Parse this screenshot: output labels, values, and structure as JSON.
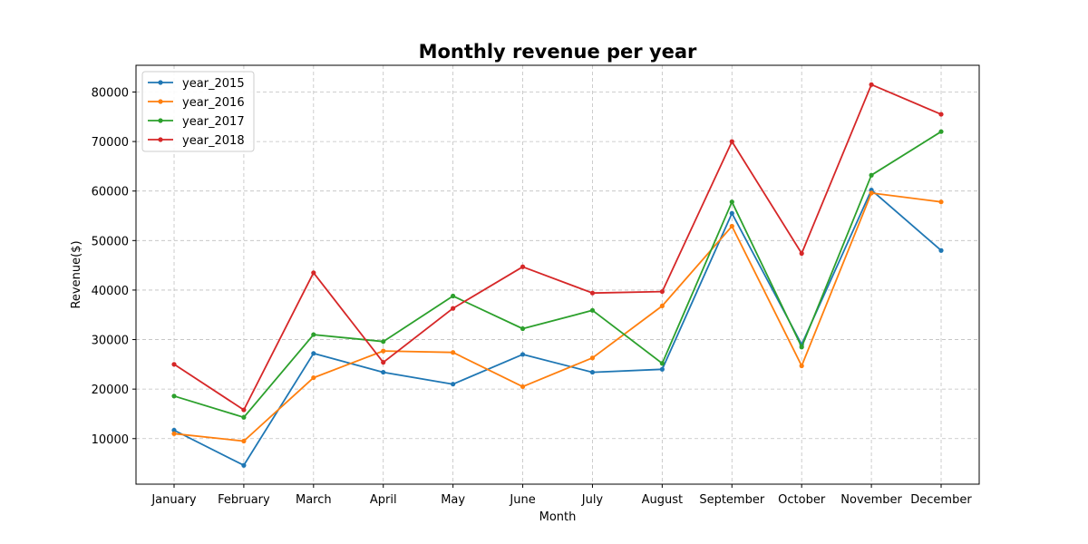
{
  "chart_data": {
    "type": "line",
    "title": "Monthly revenue per year",
    "xlabel": "Month",
    "ylabel": "Revenue($)",
    "categories": [
      "January",
      "February",
      "March",
      "April",
      "May",
      "June",
      "July",
      "August",
      "September",
      "October",
      "November",
      "December"
    ],
    "yticks": [
      10000,
      20000,
      30000,
      40000,
      50000,
      60000,
      70000,
      80000
    ],
    "ylim": [
      800,
      85400
    ],
    "grid": true,
    "legend_position": "top-left",
    "series": [
      {
        "name": "year_2015",
        "color": "#1f77b4",
        "values": [
          11700,
          4600,
          27200,
          23400,
          21000,
          27000,
          23400,
          24000,
          55500,
          29000,
          60200,
          48000
        ]
      },
      {
        "name": "year_2016",
        "color": "#ff7f0e",
        "values": [
          11000,
          9500,
          22300,
          27700,
          27400,
          20500,
          26300,
          36800,
          52900,
          24700,
          59600,
          57800
        ]
      },
      {
        "name": "year_2017",
        "color": "#2ca02c",
        "values": [
          18600,
          14300,
          31000,
          29600,
          38800,
          32200,
          35900,
          25200,
          57800,
          28500,
          63200,
          72000
        ]
      },
      {
        "name": "year_2018",
        "color": "#d62728",
        "values": [
          25000,
          15800,
          43500,
          25400,
          36300,
          44700,
          39400,
          39700,
          70000,
          47400,
          81500,
          75500
        ]
      }
    ]
  }
}
